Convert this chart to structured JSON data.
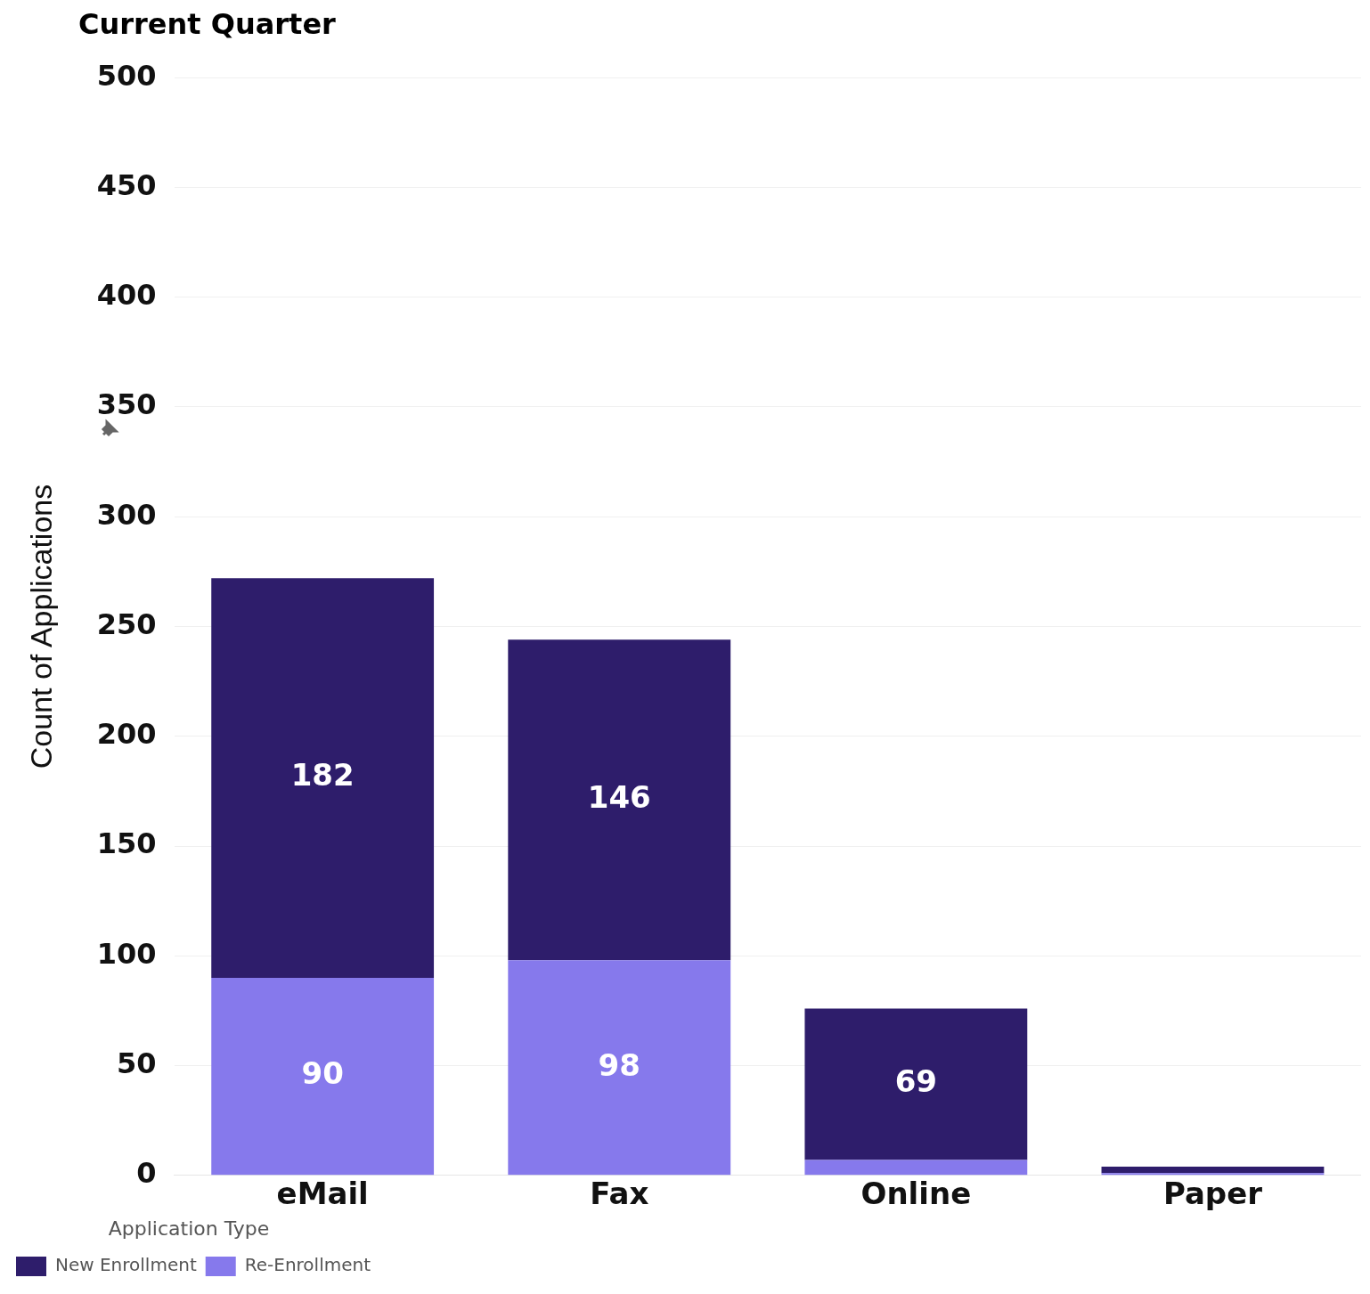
{
  "chart_data": {
    "type": "bar",
    "title": "Current Quarter",
    "ylabel": "Count of Applications",
    "legend_title": "Application Type",
    "categories": [
      "eMail",
      "Fax",
      "Online",
      "Paper"
    ],
    "series": [
      {
        "name": "Re-Enrollment",
        "color": "#8679ec",
        "values": [
          90,
          98,
          7,
          1
        ],
        "value_labels": [
          "90",
          "98",
          null,
          null
        ]
      },
      {
        "name": "New Enrollment",
        "color": "#2e1d6b",
        "values": [
          182,
          146,
          69,
          3
        ],
        "value_labels": [
          "182",
          "146",
          "69",
          null
        ]
      }
    ],
    "stacked": true,
    "ylim": [
      0,
      500
    ],
    "yticks": [
      0,
      50,
      100,
      150,
      200,
      250,
      300,
      350,
      400,
      450,
      500
    ],
    "grid": "y",
    "legend": "bottom left"
  }
}
